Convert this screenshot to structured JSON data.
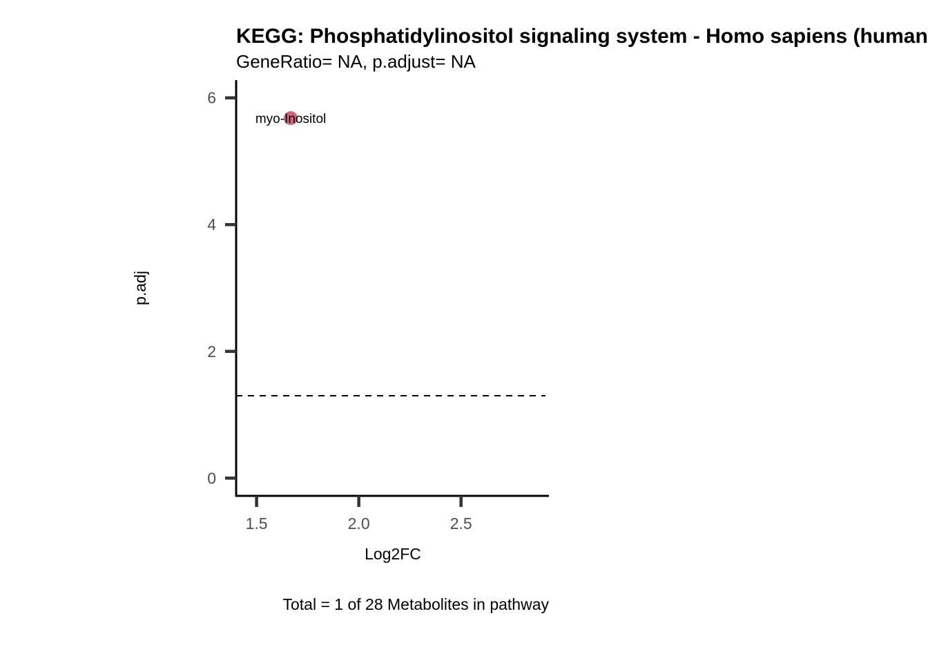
{
  "chart_data": {
    "type": "scatter",
    "title": "KEGG: Phosphatidylinositol signaling system - Homo sapiens (human)",
    "subtitle": "GeneRatio= NA, p.adjust= NA",
    "caption": "Total = 1 of 28 Metabolites in pathway",
    "xlabel": "Log2FC",
    "ylabel": "p.adj",
    "xlim": [
      1.4,
      2.93
    ],
    "ylim": [
      -0.28,
      6.28
    ],
    "x_ticks": [
      1.5,
      2.0,
      2.5
    ],
    "x_tick_labels": [
      "1.5",
      "2.0",
      "2.5"
    ],
    "y_ticks": [
      0,
      2,
      4,
      6
    ],
    "y_tick_labels": [
      "0",
      "2",
      "4",
      "6"
    ],
    "grid": false,
    "legend": "none",
    "threshold_line": {
      "y": 1.3,
      "style": "dashed"
    },
    "points": [
      {
        "x": 1.667,
        "y": 5.68,
        "label": "myo-Inositol",
        "color": "#c8566e"
      }
    ]
  }
}
